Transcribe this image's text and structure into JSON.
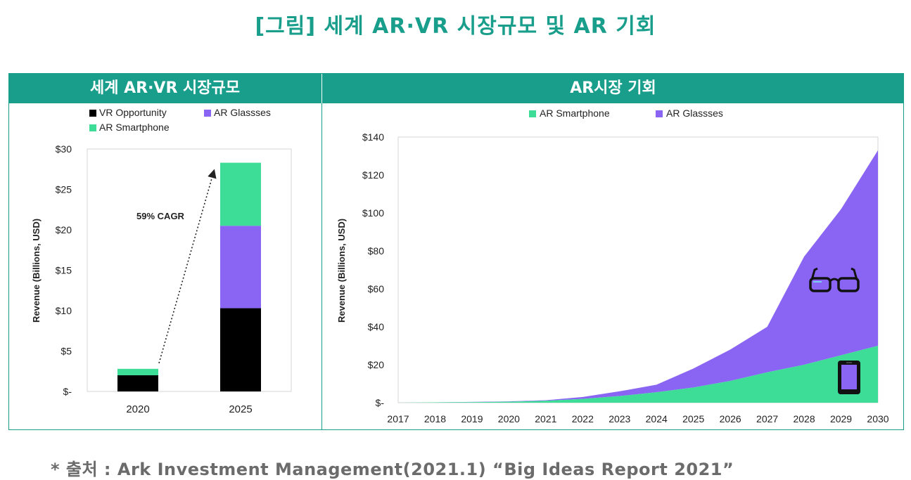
{
  "title": "[그림] 세계 AR·VR 시장규모 및 AR 기회",
  "source": "* 출처 : Ark Investment Management(2021.1) “Big Ideas Report 2021”",
  "colors": {
    "teal": "#1a9e8c",
    "vr": "#000000",
    "glasses": "#8a65f4",
    "smartphone": "#3ddc97"
  },
  "icons": [
    "glasses-icon",
    "smartphone-icon"
  ],
  "panels": {
    "left_header": "세계 AR·VR 시장규모",
    "right_header": "AR시장 기회"
  },
  "chart_data": [
    {
      "type": "bar",
      "stacked": true,
      "categories": [
        "2020",
        "2025"
      ],
      "series": [
        {
          "name": "VR Opportunity",
          "values": [
            2,
            10.3
          ]
        },
        {
          "name": "AR Glassses",
          "values": [
            0,
            10.2
          ]
        },
        {
          "name": "AR Smartphone",
          "values": [
            0.8,
            7.8
          ]
        }
      ],
      "ylabel": "Revenue (Billions, USD)",
      "ylim": [
        0,
        30
      ],
      "yticks": [
        0,
        5,
        10,
        15,
        20,
        25,
        30
      ],
      "ytick_labels": [
        "$-",
        "$5",
        "$10",
        "$15",
        "$20",
        "$25",
        "$30"
      ],
      "annotation": "59% CAGR",
      "grid": false,
      "legend": "top"
    },
    {
      "type": "area",
      "stacked": true,
      "x": [
        "2017",
        "2018",
        "2019",
        "2020",
        "2021",
        "2022",
        "2023",
        "2024",
        "2025",
        "2026",
        "2027",
        "2028",
        "2029",
        "2030"
      ],
      "series": [
        {
          "name": "AR Smartphone",
          "values": [
            0,
            0.2,
            0.3,
            0.5,
            1,
            2,
            3.5,
            5.5,
            8,
            11.5,
            16,
            20,
            25,
            30
          ]
        },
        {
          "name": "AR Glassses",
          "values": [
            0,
            0,
            0.1,
            0.2,
            0.3,
            1,
            2.5,
            4,
            10,
            16.5,
            24,
            57,
            77,
            103
          ]
        }
      ],
      "ylabel": "Revenue (Billions, USD)",
      "ylim": [
        0,
        140
      ],
      "yticks": [
        0,
        20,
        40,
        60,
        80,
        100,
        120,
        140
      ],
      "ytick_labels": [
        "$-",
        "$20",
        "$40",
        "$60",
        "$80",
        "$100",
        "$120",
        "$140"
      ],
      "grid": false,
      "legend": "top"
    }
  ]
}
